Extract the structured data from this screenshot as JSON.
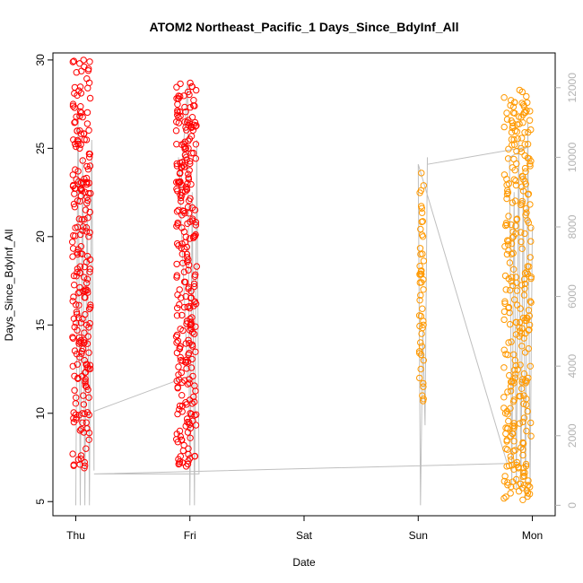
{
  "chart_data": {
    "type": "scatter",
    "title": "ATOM2 Northeast_Pacific_1 Days_Since_BdyInf_All",
    "xlabel": "Date",
    "ylabel": "Days_Since_BdyInf_All",
    "x_ticks": [
      "Thu",
      "Fri",
      "Sat",
      "Sun",
      "Mon"
    ],
    "x_tick_values": [
      0,
      1,
      2,
      3,
      4
    ],
    "xlim": [
      -0.2,
      4.2
    ],
    "ylim": [
      4.2,
      30.4
    ],
    "y_ticks": [
      5,
      10,
      15,
      20,
      25,
      30
    ],
    "y2_ticks": [
      0,
      2000,
      4000,
      6000,
      8000,
      10000,
      12000
    ],
    "y2lim": [
      -300,
      13000
    ],
    "colors": {
      "red": "#ff0000",
      "orange": "#ff9900",
      "gray_line": "#bfbfbf",
      "right_axis": "#b3b3b3"
    },
    "series": [
      {
        "color": "#ff0000",
        "clusters": [
          {
            "x_center": 0.05,
            "x_spread": 0.08,
            "n": 240,
            "anchors": [
              30.0,
              29.8,
              29.5,
              28.0,
              27.5,
              26.0,
              25.0,
              24.5,
              24.0,
              23.5,
              22.0,
              21.0,
              20.5,
              20.0,
              19.0,
              18.0,
              17.0,
              16.0,
              15.0,
              14.0,
              13.0,
              12.5,
              12.0,
              11.5,
              11.0,
              10.5,
              10.0,
              9.5,
              8.5,
              8.0,
              7.7,
              6.9
            ],
            "y_min": 6.9,
            "y_max": 30.0
          },
          {
            "x_center": 0.97,
            "x_spread": 0.09,
            "n": 280,
            "anchors": [
              28.7,
              28.5,
              27.4,
              26.5,
              26.0,
              25.0,
              24.5,
              24.0,
              23.0,
              22.0,
              21.5,
              21.0,
              20.5,
              20.0,
              19.5,
              19.0,
              18.0,
              17.0,
              16.0,
              15.0,
              14.0,
              13.0,
              12.9,
              12.3,
              10.5,
              10.0,
              9.5,
              9.0,
              8.5,
              8.0,
              7.3,
              7.0
            ],
            "y_min": 7.0,
            "y_max": 28.7
          }
        ]
      },
      {
        "color": "#ff9900",
        "clusters": [
          {
            "x_center": 3.03,
            "x_spread": 0.02,
            "n": 50,
            "anchors": [
              23.6,
              20.1,
              20.0,
              19.0,
              17.9,
              16.4,
              15.5,
              15.0,
              14.5,
              14.0,
              13.5,
              13.0,
              12.5,
              12.0,
              11.5,
              11.0,
              10.7
            ],
            "y_min": 10.7,
            "y_max": 23.6
          },
          {
            "x_center": 3.87,
            "x_spread": 0.12,
            "n": 300,
            "anchors": [
              28.3,
              27.6,
              27.0,
              26.0,
              25.5,
              25.0,
              24.0,
              23.0,
              22.5,
              22.0,
              21.0,
              20.5,
              20.0,
              19.0,
              18.0,
              17.0,
              16.0,
              15.0,
              14.0,
              13.0,
              12.0,
              11.0,
              10.0,
              9.0,
              8.0,
              7.0,
              6.0,
              5.1
            ],
            "y_min": 5.1,
            "y_max": 28.3
          }
        ]
      }
    ],
    "gray_line": {
      "axis": "right",
      "points": [
        [
          0.0,
          0
        ],
        [
          0.02,
          11500
        ],
        [
          0.04,
          0
        ],
        [
          0.06,
          10000
        ],
        [
          0.08,
          0
        ],
        [
          0.1,
          9000
        ],
        [
          0.12,
          0
        ],
        [
          0.14,
          10500
        ],
        [
          0.16,
          1000
        ],
        [
          0.16,
          2700
        ],
        [
          0.98,
          3700
        ],
        [
          0.9,
          10000
        ],
        [
          0.92,
          9000
        ],
        [
          0.94,
          10200
        ],
        [
          0.96,
          11000
        ],
        [
          0.98,
          12200
        ],
        [
          1.0,
          0
        ],
        [
          1.02,
          9000
        ],
        [
          1.04,
          0
        ],
        [
          1.06,
          10500
        ],
        [
          1.08,
          900
        ],
        [
          0.16,
          900
        ],
        [
          3.78,
          1200
        ],
        [
          3.0,
          9800
        ],
        [
          3.02,
          0
        ],
        [
          3.04,
          5000
        ],
        [
          3.06,
          2300
        ],
        [
          3.08,
          10000
        ],
        [
          3.08,
          9800
        ],
        [
          3.96,
          10300
        ],
        [
          3.8,
          10000
        ],
        [
          3.82,
          600
        ],
        [
          3.84,
          9000
        ],
        [
          3.86,
          500
        ],
        [
          3.88,
          10500
        ],
        [
          3.9,
          400
        ],
        [
          3.92,
          9500
        ],
        [
          3.94,
          200
        ],
        [
          3.96,
          11000
        ],
        [
          3.98,
          500
        ],
        [
          4.0,
          8000
        ]
      ]
    }
  }
}
